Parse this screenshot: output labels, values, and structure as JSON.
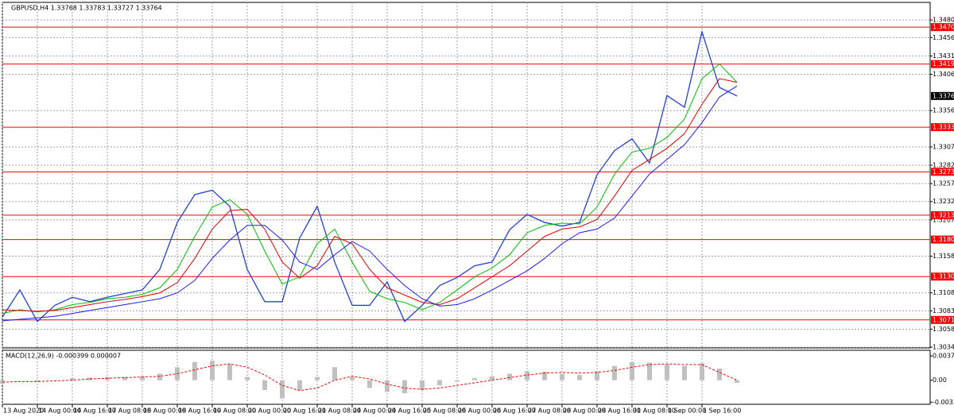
{
  "chart_data": [
    {
      "type": "line",
      "title": "GBPUSD,H4  1.33768 1.33783 1.33727 1.33764",
      "categories": [
        "13 Aug 2020",
        null,
        "14 Aug 00:00",
        null,
        "14 Aug 16:00",
        null,
        "17 Aug 08:00",
        null,
        "18 Aug 00:00",
        null,
        "18 Aug 16:00",
        null,
        "19 Aug 08:00",
        null,
        "20 Aug 00:00",
        null,
        "20 Aug 16:00",
        null,
        "21 Aug 08:00",
        null,
        "24 Aug 00:00",
        null,
        "24 Aug 16:00",
        null,
        "25 Aug 08:00",
        null,
        "26 Aug 00:00",
        null,
        "26 Aug 16:00",
        null,
        "27 Aug 08:00",
        null,
        "28 Aug 00:00",
        null,
        "28 Aug 16:00",
        null,
        "31 Aug 08:00",
        null,
        "1 Sep 00:00",
        null,
        "1 Sep 16:00",
        null,
        null
      ],
      "series": [
        {
          "color": "#2440d0",
          "values": [
            1.3075,
            1.3112,
            1.3069,
            1.3091,
            1.3102,
            1.3096,
            1.3102,
            1.3107,
            1.3112,
            1.314,
            1.3204,
            1.3242,
            1.3248,
            1.3226,
            1.314,
            1.3096,
            1.3096,
            1.3183,
            1.3226,
            1.315,
            1.3091,
            1.3091,
            1.3123,
            1.3069,
            1.3091,
            1.3118,
            1.3129,
            1.3145,
            1.315,
            1.3194,
            1.3215,
            1.3204,
            1.3199,
            1.3204,
            1.3269,
            1.3302,
            1.3318,
            1.3285,
            1.3377,
            1.3361,
            1.3464,
            1.3388,
            1.33764
          ]
        },
        {
          "color": "#00c000",
          "values": [
            1.308,
            1.3085,
            1.3082,
            1.3085,
            1.3092,
            1.3095,
            1.31,
            1.3102,
            1.3106,
            1.3115,
            1.314,
            1.3185,
            1.3225,
            1.3235,
            1.3215,
            1.3165,
            1.312,
            1.313,
            1.3175,
            1.3195,
            1.315,
            1.311,
            1.31,
            1.3095,
            1.3085,
            1.3095,
            1.3112,
            1.313,
            1.3142,
            1.316,
            1.319,
            1.32,
            1.3203,
            1.3202,
            1.3225,
            1.327,
            1.33,
            1.3305,
            1.332,
            1.3345,
            1.34,
            1.342,
            1.3395
          ]
        },
        {
          "color": "#e00000",
          "values": [
            1.3085,
            1.3084,
            1.3083,
            1.3084,
            1.3088,
            1.3092,
            1.3096,
            1.3099,
            1.3103,
            1.3108,
            1.3122,
            1.3155,
            1.3195,
            1.322,
            1.3222,
            1.3195,
            1.315,
            1.3128,
            1.3145,
            1.3185,
            1.3175,
            1.314,
            1.3115,
            1.3105,
            1.3095,
            1.3092,
            1.31,
            1.3115,
            1.313,
            1.3145,
            1.3165,
            1.3185,
            1.3195,
            1.3198,
            1.3208,
            1.324,
            1.3275,
            1.329,
            1.3305,
            1.3325,
            1.3365,
            1.34,
            1.3395
          ]
        },
        {
          "color": "#1a1aff",
          "values": [
            1.307,
            1.3072,
            1.3074,
            1.3076,
            1.308,
            1.3084,
            1.3088,
            1.3092,
            1.3096,
            1.31,
            1.3108,
            1.3125,
            1.3155,
            1.318,
            1.32,
            1.32,
            1.318,
            1.315,
            1.314,
            1.316,
            1.3178,
            1.3165,
            1.314,
            1.3118,
            1.31,
            1.309,
            1.3092,
            1.31,
            1.3112,
            1.3125,
            1.3138,
            1.3155,
            1.3175,
            1.319,
            1.3195,
            1.321,
            1.324,
            1.327,
            1.329,
            1.331,
            1.334,
            1.3375,
            1.339
          ]
        }
      ],
      "ylim": [
        1.3033,
        1.3504
      ],
      "yticks": [
        {
          "value": 1.348,
          "label": "1.34800"
        },
        {
          "value": 1.3456,
          "label": "1.34560"
        },
        {
          "value": 1.3431,
          "label": "1.34310"
        },
        {
          "value": 1.3406,
          "label": "1.34060"
        },
        1.33565,
        {
          "value": 1.3307,
          "label": "1.33070"
        },
        {
          "value": 1.3282,
          "label": "1.32820"
        },
        {
          "value": 1.3257,
          "label": "1.32570"
        },
        1.32325,
        1.32075,
        {
          "value": 1.3158,
          "label": "1.31580"
        },
        {
          "value": 1.3108,
          "label": "1.31080"
        },
        1.30835,
        1.30585,
        {
          "value": 1.3034,
          "label": "1.30340"
        }
      ],
      "levels": [
        1.34703,
        1.34199,
        1.33339,
        1.3273,
        1.32139,
        1.31807,
        1.31302,
        1.30711
      ],
      "level_labels": [
        "1.34703",
        "1.34199",
        "1.33339",
        "1.32730",
        "1.32139",
        "1.31807",
        "1.31302",
        "1.30711"
      ],
      "level_color": "#ff0000",
      "last_price": 1.33764,
      "grid": true
    },
    {
      "type": "bar",
      "title": "MACD(12,26,9) -0.000399 0.000007",
      "series": [
        {
          "type": "bar",
          "color": "#c0c0c0",
          "values": [
            -0.0005,
            0.0,
            -0.0003,
            0.0,
            0.0003,
            0.0004,
            0.0005,
            0.0005,
            0.0006,
            0.001,
            0.002,
            0.0028,
            0.003,
            0.0025,
            0.0005,
            -0.0015,
            -0.0028,
            -0.0015,
            0.0005,
            0.002,
            0.0005,
            -0.0012,
            -0.0018,
            -0.002,
            -0.0015,
            -0.0008,
            -0.0002,
            0.0003,
            0.0006,
            0.001,
            0.0014,
            0.0013,
            0.001,
            0.0008,
            0.0014,
            0.0022,
            0.0028,
            0.0027,
            0.0024,
            0.0022,
            0.0026,
            0.0018,
            -0.0004
          ]
        },
        {
          "type": "line",
          "color": "#ff0000",
          "values": [
            -0.0003,
            -0.0002,
            -0.0002,
            -0.0001,
            0.0,
            0.0002,
            0.0003,
            0.0004,
            0.0005,
            0.0006,
            0.001,
            0.0016,
            0.0022,
            0.0025,
            0.002,
            0.0008,
            -0.0008,
            -0.0016,
            -0.0012,
            0.0,
            0.0006,
            0.0002,
            -0.0006,
            -0.0012,
            -0.0014,
            -0.0012,
            -0.0008,
            -0.0004,
            0.0,
            0.0004,
            0.0008,
            0.0011,
            0.0012,
            0.0011,
            0.0012,
            0.0015,
            0.002,
            0.0024,
            0.0025,
            0.0024,
            0.0024,
            0.0012,
            0.0
          ]
        }
      ],
      "ylim": [
        -0.0037,
        0.0046
      ],
      "yticks": [
        0.003733,
        {
          "value": 0,
          "label": "0.00"
        },
        -0.003375
      ]
    }
  ]
}
